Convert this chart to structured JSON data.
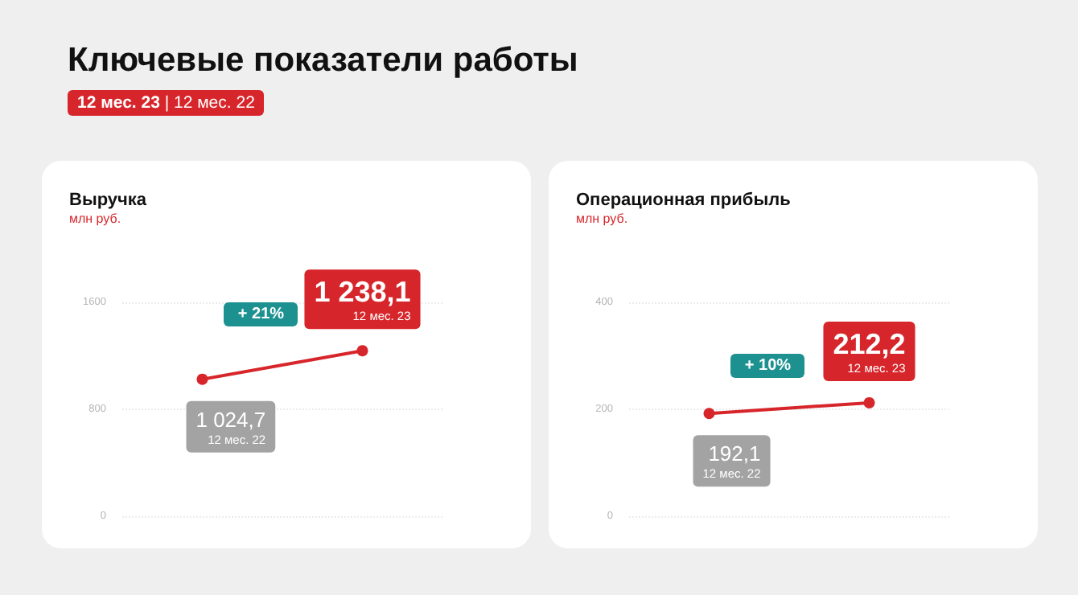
{
  "chart_data": [
    {
      "type": "other",
      "title": "Ключевые показатели работы",
      "subtitle": "12 мес. 23 | 12 мес. 22"
    },
    {
      "type": "line",
      "title": "Выручка",
      "subtitle": "млн руб.",
      "categories": [
        "12 мес. 22",
        "12 мес. 23"
      ],
      "tick_labels": "y",
      "series": [
        {
          "color": "#d7262b",
          "values": [
            1024.7,
            1238.1
          ]
        }
      ],
      "value_labels": [
        "1 024,7",
        "1 238,1"
      ],
      "ylim": [
        0,
        1600
      ],
      "yticks": [
        0,
        800,
        1600
      ],
      "grid": "y",
      "marker": "circle",
      "annotations": [
        "+ 21%"
      ]
    },
    {
      "type": "line",
      "title": "Операционная прибыль",
      "subtitle": "млн руб.",
      "categories": [
        "12 мес. 22",
        "12 мес. 23"
      ],
      "tick_labels": "y",
      "series": [
        {
          "color": "#d7262b",
          "values": [
            192.1,
            212.2
          ]
        }
      ],
      "value_labels": [
        "192,1",
        "212,2"
      ],
      "ylim": [
        0,
        400
      ],
      "yticks": [
        0,
        200,
        400
      ],
      "grid": "y",
      "marker": "circle",
      "annotations": [
        "+ 10%"
      ]
    }
  ]
}
